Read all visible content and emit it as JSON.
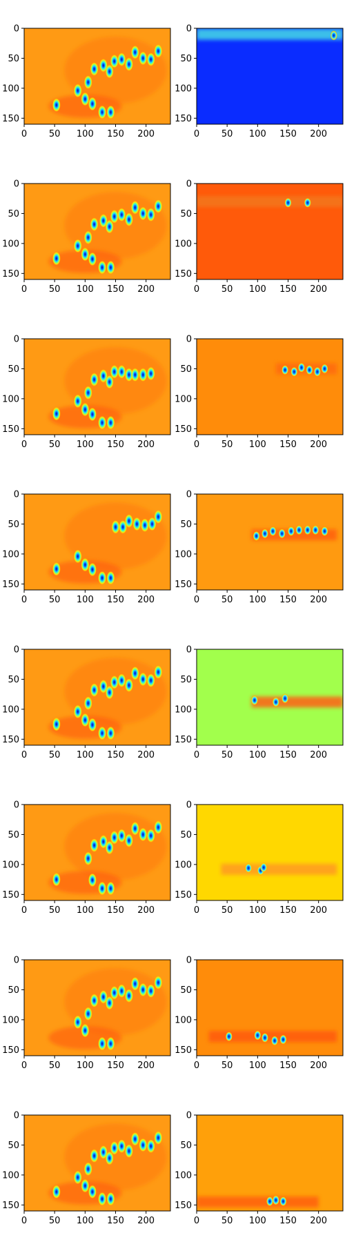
{
  "chart_data": {
    "type": "heatmap",
    "layout": "8 rows x 2 columns of image panels",
    "colormap": "jet",
    "xlim": [
      0,
      240
    ],
    "ylim": [
      160,
      0
    ],
    "xticks": [
      0,
      50,
      100,
      150,
      200
    ],
    "yticks": [
      0,
      50,
      100,
      150
    ],
    "xtick_labels": [
      "0",
      "50",
      "100",
      "150",
      "200"
    ],
    "ytick_labels": [
      "0",
      "50",
      "100",
      "150"
    ],
    "title": "",
    "xlabel": "",
    "ylabel": "",
    "left_column": {
      "description": "accumulated heatmaps; orange background with bright blob clusters",
      "background_value": 0.77,
      "blobs_by_row": [
        [
          [
            53,
            128
          ],
          [
            88,
            104
          ],
          [
            100,
            118
          ],
          [
            112,
            126
          ],
          [
            128,
            140
          ],
          [
            142,
            140
          ],
          [
            105,
            90
          ],
          [
            115,
            68
          ],
          [
            130,
            62
          ],
          [
            140,
            72
          ],
          [
            148,
            55
          ],
          [
            160,
            52
          ],
          [
            172,
            60
          ],
          [
            182,
            40
          ],
          [
            195,
            50
          ],
          [
            208,
            52
          ],
          [
            220,
            38
          ]
        ],
        [
          [
            53,
            125
          ],
          [
            88,
            104
          ],
          [
            100,
            118
          ],
          [
            112,
            126
          ],
          [
            128,
            140
          ],
          [
            142,
            140
          ],
          [
            105,
            90
          ],
          [
            115,
            68
          ],
          [
            130,
            62
          ],
          [
            140,
            72
          ],
          [
            148,
            55
          ],
          [
            160,
            52
          ],
          [
            172,
            60
          ],
          [
            182,
            40
          ],
          [
            195,
            50
          ],
          [
            208,
            52
          ],
          [
            220,
            38
          ]
        ],
        [
          [
            53,
            125
          ],
          [
            88,
            104
          ],
          [
            100,
            118
          ],
          [
            112,
            126
          ],
          [
            128,
            140
          ],
          [
            142,
            140
          ],
          [
            105,
            90
          ],
          [
            115,
            68
          ],
          [
            130,
            62
          ],
          [
            140,
            72
          ],
          [
            148,
            55
          ],
          [
            160,
            55
          ],
          [
            172,
            60
          ],
          [
            182,
            60
          ],
          [
            195,
            60
          ],
          [
            208,
            58
          ]
        ],
        [
          [
            53,
            125
          ],
          [
            88,
            104
          ],
          [
            100,
            118
          ],
          [
            112,
            126
          ],
          [
            128,
            140
          ],
          [
            142,
            140
          ],
          [
            150,
            55
          ],
          [
            162,
            55
          ],
          [
            172,
            45
          ],
          [
            185,
            50
          ],
          [
            198,
            52
          ],
          [
            210,
            50
          ],
          [
            220,
            38
          ]
        ],
        [
          [
            53,
            125
          ],
          [
            88,
            104
          ],
          [
            100,
            118
          ],
          [
            112,
            126
          ],
          [
            128,
            140
          ],
          [
            142,
            140
          ],
          [
            105,
            90
          ],
          [
            115,
            68
          ],
          [
            130,
            62
          ],
          [
            140,
            72
          ],
          [
            148,
            55
          ],
          [
            160,
            52
          ],
          [
            172,
            60
          ],
          [
            182,
            40
          ],
          [
            195,
            50
          ],
          [
            208,
            52
          ],
          [
            220,
            38
          ]
        ],
        [
          [
            53,
            125
          ],
          [
            112,
            126
          ],
          [
            128,
            140
          ],
          [
            142,
            140
          ],
          [
            105,
            90
          ],
          [
            115,
            68
          ],
          [
            130,
            62
          ],
          [
            140,
            72
          ],
          [
            148,
            55
          ],
          [
            160,
            52
          ],
          [
            172,
            60
          ],
          [
            182,
            40
          ],
          [
            195,
            50
          ],
          [
            208,
            52
          ],
          [
            220,
            38
          ]
        ],
        [
          [
            88,
            104
          ],
          [
            100,
            118
          ],
          [
            128,
            140
          ],
          [
            142,
            140
          ],
          [
            105,
            90
          ],
          [
            115,
            68
          ],
          [
            130,
            62
          ],
          [
            140,
            72
          ],
          [
            148,
            55
          ],
          [
            160,
            52
          ],
          [
            172,
            60
          ],
          [
            182,
            40
          ],
          [
            195,
            50
          ],
          [
            208,
            52
          ],
          [
            220,
            38
          ]
        ],
        [
          [
            53,
            128
          ],
          [
            88,
            104
          ],
          [
            100,
            118
          ],
          [
            112,
            128
          ],
          [
            128,
            140
          ],
          [
            142,
            140
          ],
          [
            105,
            90
          ],
          [
            115,
            68
          ],
          [
            130,
            62
          ],
          [
            140,
            72
          ],
          [
            148,
            55
          ],
          [
            160,
            52
          ],
          [
            172,
            60
          ],
          [
            182,
            40
          ],
          [
            195,
            50
          ],
          [
            208,
            52
          ],
          [
            220,
            38
          ]
        ]
      ]
    },
    "right_column": [
      {
        "background": "#0a2cff",
        "band_y": 10,
        "band_color": "#45d9e6",
        "band_x": [
          0,
          240
        ],
        "spots": [
          [
            225,
            12
          ]
        ]
      },
      {
        "background": "#ff5a0a",
        "band_y": 30,
        "band_color": "#f3771c",
        "band_x": [
          0,
          240
        ],
        "spots": [
          [
            150,
            32
          ],
          [
            182,
            32
          ]
        ]
      },
      {
        "background": "#ff8c0a",
        "band_y": 50,
        "band_color": "#ff6a10",
        "band_x": [
          130,
          230
        ],
        "spots": [
          [
            145,
            52
          ],
          [
            160,
            55
          ],
          [
            172,
            48
          ],
          [
            185,
            52
          ],
          [
            198,
            55
          ],
          [
            210,
            50
          ]
        ]
      },
      {
        "background": "#ff9a10",
        "band_y": 68,
        "band_color": "#ff6010",
        "band_x": [
          90,
          230
        ],
        "spots": [
          [
            98,
            70
          ],
          [
            112,
            66
          ],
          [
            125,
            62
          ],
          [
            140,
            66
          ],
          [
            155,
            62
          ],
          [
            168,
            60
          ],
          [
            182,
            60
          ],
          [
            195,
            60
          ],
          [
            210,
            62
          ]
        ]
      },
      {
        "background": "#a2ff4c",
        "band_y": 88,
        "band_color": "#ff6015",
        "band_x": [
          90,
          240
        ],
        "spots": [
          [
            95,
            85
          ],
          [
            130,
            88
          ],
          [
            145,
            82
          ]
        ]
      },
      {
        "background": "#ffd800",
        "band_y": 108,
        "band_color": "#ff9a20",
        "band_x": [
          40,
          230
        ],
        "spots": [
          [
            85,
            106
          ],
          [
            105,
            110
          ],
          [
            110,
            105
          ]
        ]
      },
      {
        "background": "#ff8c0a",
        "band_y": 128,
        "band_color": "#ff5a10",
        "band_x": [
          20,
          230
        ],
        "spots": [
          [
            53,
            128
          ],
          [
            100,
            126
          ],
          [
            112,
            130
          ],
          [
            128,
            135
          ],
          [
            142,
            133
          ]
        ]
      },
      {
        "background": "#ffa00a",
        "band_y": 145,
        "band_color": "#ff6010",
        "band_x": [
          0,
          200
        ],
        "spots": [
          [
            120,
            144
          ],
          [
            130,
            142
          ],
          [
            142,
            144
          ]
        ]
      }
    ]
  }
}
